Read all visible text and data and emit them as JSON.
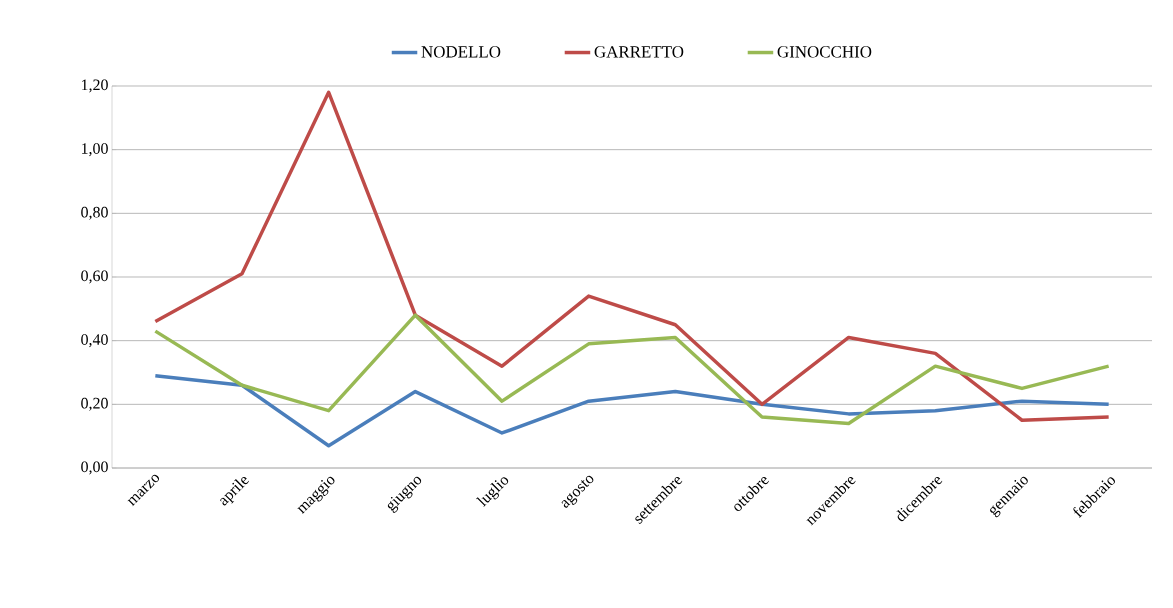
{
  "chart_data": {
    "type": "line",
    "categories": [
      "marzo",
      "aprile",
      "maggio",
      "giugno",
      "luglio",
      "agosto",
      "settembre",
      "ottobre",
      "novembre",
      "dicembre",
      "gennaio",
      "febbraio"
    ],
    "series": [
      {
        "name": "NODELLO",
        "color": "#4a7ebb",
        "values": [
          0.29,
          0.26,
          0.07,
          0.24,
          0.11,
          0.21,
          0.24,
          0.2,
          0.17,
          0.18,
          0.21,
          0.2
        ]
      },
      {
        "name": "GARRETTO",
        "color": "#be4b48",
        "values": [
          0.46,
          0.61,
          1.18,
          0.48,
          0.32,
          0.54,
          0.45,
          0.2,
          0.41,
          0.36,
          0.15,
          0.16
        ]
      },
      {
        "name": "GINOCCHIO",
        "color": "#98b954",
        "values": [
          0.43,
          0.26,
          0.18,
          0.48,
          0.21,
          0.39,
          0.41,
          0.16,
          0.14,
          0.32,
          0.25,
          0.32
        ]
      }
    ],
    "ylim": [
      0,
      1.2
    ],
    "yticks": [
      {
        "value": 0,
        "label": "0,00"
      },
      {
        "value": 0.2,
        "label": "0,20"
      },
      {
        "value": 0.4,
        "label": "0,40"
      },
      {
        "value": 0.6,
        "label": "0,60"
      },
      {
        "value": 0.8,
        "label": "0,80"
      },
      {
        "value": 1.0,
        "label": "1,00"
      },
      {
        "value": 1.2,
        "label": "1,20"
      }
    ],
    "grid": "y",
    "legend": "top",
    "marker": "none",
    "line_style": "solid"
  }
}
